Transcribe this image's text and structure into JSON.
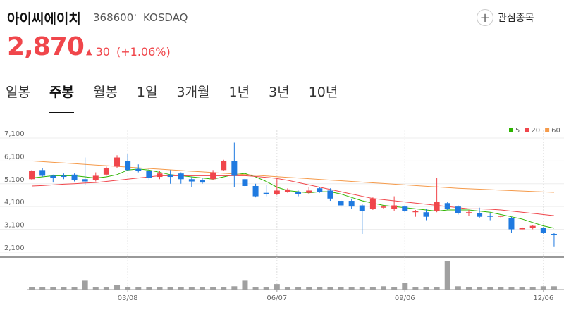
{
  "header": {
    "name": "아이씨에이치",
    "code": "368600",
    "market": "KOSDAQ",
    "price": "2,870",
    "change": "30",
    "change_percent": "(+1.06%)",
    "watchlist_button": "관심종목"
  },
  "tabs": {
    "items": [
      "일봉",
      "주봉",
      "월봉",
      "1일",
      "3개월",
      "1년",
      "3년",
      "10년"
    ],
    "active": 1
  },
  "chart_data": {
    "type": "candlestick",
    "categories": [
      null,
      null,
      null,
      null,
      null,
      null,
      null,
      null,
      null,
      "03/08",
      null,
      null,
      null,
      null,
      null,
      null,
      null,
      null,
      null,
      null,
      null,
      null,
      null,
      "06/07",
      null,
      null,
      null,
      null,
      null,
      null,
      null,
      null,
      null,
      null,
      null,
      "09/06",
      null,
      null,
      null,
      null,
      null,
      null,
      null,
      null,
      null,
      null,
      null,
      null,
      "12/06",
      null
    ],
    "open": [
      5300,
      5700,
      5450,
      5450,
      5500,
      5300,
      5250,
      5500,
      5850,
      6100,
      5750,
      5650,
      5400,
      5500,
      5550,
      5300,
      5250,
      5300,
      5700,
      6100,
      5300,
      5000,
      4700,
      4650,
      4750,
      4750,
      4700,
      4900,
      4800,
      4350,
      4350,
      4150,
      4000,
      4050,
      4000,
      4100,
      3850,
      3850,
      3900,
      4250,
      4100,
      3800,
      3800,
      3700,
      3650,
      3600,
      3100,
      3150,
      3150,
      2900
    ],
    "high": [
      5700,
      5800,
      5500,
      5550,
      5550,
      6250,
      5600,
      5850,
      6350,
      6400,
      5950,
      5800,
      5650,
      5700,
      5600,
      5400,
      5350,
      5700,
      6150,
      6900,
      5350,
      5100,
      5050,
      5350,
      4900,
      4800,
      4950,
      4950,
      4900,
      4400,
      4450,
      4200,
      4500,
      4150,
      4550,
      4150,
      3950,
      4000,
      5350,
      4300,
      4150,
      3950,
      4050,
      3800,
      3750,
      3650,
      3200,
      3300,
      3200,
      2950
    ],
    "low": [
      5250,
      5400,
      5150,
      5300,
      5200,
      5050,
      5200,
      5450,
      5800,
      5650,
      5600,
      5250,
      5300,
      5100,
      5100,
      4950,
      5100,
      5250,
      5650,
      4950,
      4950,
      4500,
      4550,
      4600,
      4700,
      4550,
      4650,
      4700,
      4350,
      4050,
      4000,
      2900,
      3950,
      4000,
      3900,
      3850,
      3650,
      3500,
      3850,
      3950,
      3750,
      3700,
      3600,
      3500,
      3600,
      2950,
      3050,
      3100,
      2900,
      2350
    ],
    "close": [
      5650,
      5450,
      5350,
      5400,
      5250,
      5200,
      5450,
      5800,
      6250,
      5700,
      5650,
      5350,
      5550,
      5400,
      5300,
      5200,
      5150,
      5600,
      6100,
      5450,
      5000,
      4550,
      4650,
      4800,
      4850,
      4650,
      4800,
      4750,
      4450,
      4150,
      4100,
      3900,
      4450,
      4100,
      4150,
      3900,
      3900,
      3650,
      4300,
      4000,
      3800,
      3850,
      3650,
      3650,
      3700,
      3100,
      3150,
      3250,
      2950,
      2870
    ],
    "up_color": "#f0464b",
    "down_color": "#1f7ae0",
    "series": [
      {
        "name": "5",
        "color": "#2db400",
        "values": [
          5350,
          5400,
          5450,
          5450,
          5450,
          5400,
          5350,
          5400,
          5500,
          5700,
          5750,
          5700,
          5600,
          5500,
          5450,
          5400,
          5350,
          5300,
          5400,
          5500,
          5550,
          5400,
          5200,
          4950,
          4800,
          4750,
          4700,
          4750,
          4750,
          4650,
          4500,
          4350,
          4250,
          4150,
          4100,
          4050,
          4000,
          3950,
          3900,
          3950,
          3950,
          3950,
          3900,
          3850,
          3750,
          3650,
          3550,
          3400,
          3250,
          3150
        ]
      },
      {
        "name": "20",
        "color": "#f0464b",
        "values": [
          5000,
          5020,
          5050,
          5080,
          5100,
          5130,
          5150,
          5200,
          5250,
          5300,
          5350,
          5400,
          5450,
          5450,
          5450,
          5450,
          5450,
          5450,
          5450,
          5450,
          5450,
          5420,
          5380,
          5330,
          5250,
          5150,
          5050,
          4950,
          4850,
          4750,
          4650,
          4550,
          4450,
          4400,
          4350,
          4300,
          4250,
          4200,
          4150,
          4100,
          4050,
          4000,
          4000,
          3980,
          3950,
          3900,
          3850,
          3800,
          3750,
          3700
        ]
      },
      {
        "name": "60",
        "color": "#f59a4a",
        "values": [
          6100,
          6070,
          6040,
          6010,
          5980,
          5950,
          5920,
          5890,
          5860,
          5830,
          5800,
          5770,
          5740,
          5710,
          5680,
          5650,
          5620,
          5590,
          5560,
          5530,
          5500,
          5470,
          5440,
          5410,
          5380,
          5350,
          5320,
          5290,
          5260,
          5230,
          5200,
          5170,
          5140,
          5110,
          5080,
          5050,
          5020,
          4990,
          4960,
          4930,
          4900,
          4880,
          4860,
          4840,
          4820,
          4800,
          4780,
          4760,
          4740,
          4720
        ]
      }
    ],
    "volume": {
      "color": "#a0a0a0",
      "values": [
        1,
        1,
        1,
        1,
        1,
        4,
        1,
        1.2,
        2,
        1,
        1,
        1,
        1,
        1,
        1,
        1,
        1,
        1,
        1,
        1.5,
        4,
        1,
        1,
        2.5,
        1,
        1,
        1,
        1,
        1,
        1,
        1,
        1,
        1,
        1.5,
        1,
        3,
        1,
        1,
        1,
        13,
        1.5,
        1,
        1,
        1,
        1,
        1,
        1,
        1,
        1.5,
        1.5
      ]
    },
    "ylim": [
      1880,
      7440
    ],
    "yticks": [
      {
        "value": 7100,
        "label": "7,100"
      },
      {
        "value": 6100,
        "label": "6,100"
      },
      {
        "value": 5100,
        "label": "5,100"
      },
      {
        "value": 4100,
        "label": "4,100"
      },
      {
        "value": 3100,
        "label": "3,100"
      },
      {
        "value": 2100,
        "label": "2,100"
      }
    ],
    "grid": true
  }
}
